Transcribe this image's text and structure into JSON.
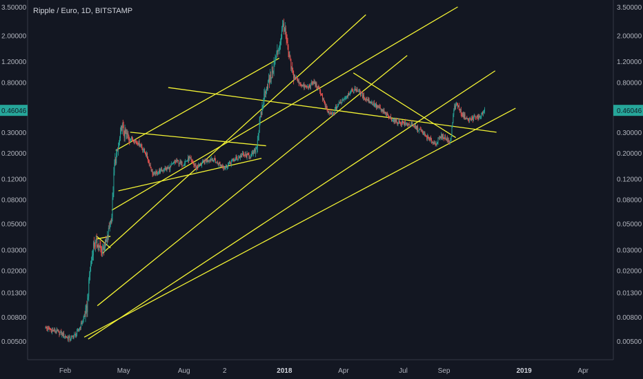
{
  "chart_data": {
    "type": "candlestick",
    "title": "Ripple / Euro, 1D, BITSTAMP",
    "scale": "log",
    "ylim": [
      0.0042,
      3.5
    ],
    "y_ticks": [
      "3.50000",
      "2.00000",
      "1.20000",
      "0.80000",
      "0.46046",
      "0.30000",
      "0.20000",
      "0.12000",
      "0.08000",
      "0.05000",
      "0.03000",
      "0.02000",
      "0.01300",
      "0.00800",
      "0.00500"
    ],
    "y_tick_values": [
      3.5,
      2.0,
      1.2,
      0.8,
      0.46046,
      0.3,
      0.2,
      0.12,
      0.08,
      0.05,
      0.03,
      0.02,
      0.013,
      0.008,
      0.005
    ],
    "x_ticks": [
      {
        "label": "Feb",
        "day": 31,
        "bold": false
      },
      {
        "label": "May",
        "day": 120,
        "bold": false
      },
      {
        "label": "Aug",
        "day": 212,
        "bold": false
      },
      {
        "label": "2",
        "day": 274,
        "bold": false
      },
      {
        "label": "2018",
        "day": 365,
        "bold": true
      },
      {
        "label": "Apr",
        "day": 455,
        "bold": false
      },
      {
        "label": "Jul",
        "day": 546,
        "bold": false
      },
      {
        "label": "Sep",
        "day": 608,
        "bold": false
      },
      {
        "label": "2019",
        "day": 730,
        "bold": true
      },
      {
        "label": "Apr",
        "day": 820,
        "bold": false
      }
    ],
    "x_axis": "days since 2017-01-01",
    "last_price": "0.46046",
    "last_price_value": 0.46046,
    "price_anchors": [
      [
        1,
        0.0065
      ],
      [
        10,
        0.0062
      ],
      [
        25,
        0.0058
      ],
      [
        38,
        0.0052
      ],
      [
        48,
        0.0057
      ],
      [
        58,
        0.0075
      ],
      [
        64,
        0.0095
      ],
      [
        68,
        0.018
      ],
      [
        74,
        0.033
      ],
      [
        80,
        0.034
      ],
      [
        86,
        0.029
      ],
      [
        94,
        0.035
      ],
      [
        102,
        0.06
      ],
      [
        106,
        0.16
      ],
      [
        112,
        0.22
      ],
      [
        117,
        0.34
      ],
      [
        121,
        0.29
      ],
      [
        130,
        0.27
      ],
      [
        145,
        0.24
      ],
      [
        155,
        0.19
      ],
      [
        165,
        0.13
      ],
      [
        175,
        0.14
      ],
      [
        190,
        0.15
      ],
      [
        200,
        0.17
      ],
      [
        210,
        0.16
      ],
      [
        220,
        0.18
      ],
      [
        230,
        0.15
      ],
      [
        245,
        0.17
      ],
      [
        255,
        0.18
      ],
      [
        265,
        0.16
      ],
      [
        275,
        0.15
      ],
      [
        285,
        0.17
      ],
      [
        300,
        0.19
      ],
      [
        315,
        0.19
      ],
      [
        322,
        0.22
      ],
      [
        328,
        0.38
      ],
      [
        336,
        0.7
      ],
      [
        343,
        0.85
      ],
      [
        352,
        1.3
      ],
      [
        358,
        1.7
      ],
      [
        363,
        2.5
      ],
      [
        366,
        2.1
      ],
      [
        370,
        1.5
      ],
      [
        376,
        1.0
      ],
      [
        385,
        0.82
      ],
      [
        392,
        0.75
      ],
      [
        400,
        0.72
      ],
      [
        410,
        0.8
      ],
      [
        420,
        0.66
      ],
      [
        430,
        0.45
      ],
      [
        438,
        0.42
      ],
      [
        445,
        0.5
      ],
      [
        455,
        0.58
      ],
      [
        465,
        0.66
      ],
      [
        475,
        0.7
      ],
      [
        485,
        0.6
      ],
      [
        495,
        0.55
      ],
      [
        505,
        0.5
      ],
      [
        515,
        0.45
      ],
      [
        525,
        0.4
      ],
      [
        535,
        0.37
      ],
      [
        545,
        0.36
      ],
      [
        555,
        0.35
      ],
      [
        565,
        0.33
      ],
      [
        575,
        0.3
      ],
      [
        585,
        0.26
      ],
      [
        595,
        0.24
      ],
      [
        605,
        0.28
      ],
      [
        612,
        0.26
      ],
      [
        618,
        0.25
      ],
      [
        623,
        0.48
      ],
      [
        628,
        0.52
      ],
      [
        635,
        0.43
      ],
      [
        645,
        0.38
      ],
      [
        655,
        0.4
      ],
      [
        662,
        0.4
      ],
      [
        670,
        0.46
      ]
    ],
    "trendlines": [
      {
        "from": [
          88,
          0.028
        ],
        "to": [
          489,
          3.0
        ]
      },
      {
        "from": [
          102,
          0.065
        ],
        "to": [
          629,
          3.5
        ]
      },
      {
        "from": [
          108,
          0.21
        ],
        "to": [
          357,
          1.28
        ]
      },
      {
        "from": [
          80,
          0.01
        ],
        "to": [
          552,
          1.35
        ]
      },
      {
        "from": [
          66,
          0.0052
        ],
        "to": [
          686,
          1.0
        ]
      },
      {
        "from": [
          60,
          0.0054
        ],
        "to": [
          717,
          0.48
        ]
      },
      {
        "from": [
          188,
          0.72
        ],
        "to": [
          688,
          0.3
        ]
      },
      {
        "from": [
          112,
          0.095
        ],
        "to": [
          330,
          0.18
        ]
      },
      {
        "from": [
          130,
          0.3
        ],
        "to": [
          337,
          0.23
        ]
      },
      {
        "from": [
          79,
          0.039
        ],
        "to": [
          100,
          0.031
        ]
      },
      {
        "from": [
          79,
          0.037
        ],
        "to": [
          100,
          0.039
        ]
      },
      {
        "from": [
          470,
          0.96
        ],
        "to": [
          626,
          0.27
        ]
      }
    ],
    "trendline_color": "#f5f534",
    "up_color": "#26a69a",
    "down_color": "#ef5350",
    "grid": false
  }
}
